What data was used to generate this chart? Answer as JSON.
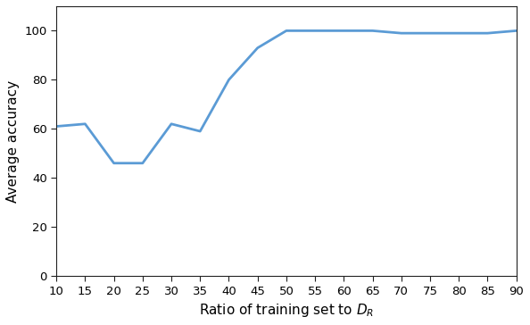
{
  "x": [
    10,
    15,
    20,
    25,
    30,
    35,
    40,
    45,
    50,
    55,
    60,
    65,
    70,
    75,
    80,
    85,
    90
  ],
  "y": [
    61,
    62,
    46,
    46,
    62,
    59,
    80,
    93,
    100,
    100,
    100,
    100,
    99,
    99,
    99,
    99,
    100
  ],
  "line_color": "#5B9BD5",
  "line_width": 2.0,
  "xlabel": "Ratio of training set to $D_R$",
  "ylabel": "Average accuracy",
  "xlim": [
    10,
    90
  ],
  "ylim": [
    0,
    110
  ],
  "xticks": [
    10,
    15,
    20,
    25,
    30,
    35,
    40,
    45,
    50,
    55,
    60,
    65,
    70,
    75,
    80,
    85,
    90
  ],
  "yticks": [
    0,
    20,
    40,
    60,
    80,
    100
  ],
  "xlabel_fontsize": 11,
  "ylabel_fontsize": 11,
  "tick_fontsize": 9.5,
  "spine_color": "#222222"
}
